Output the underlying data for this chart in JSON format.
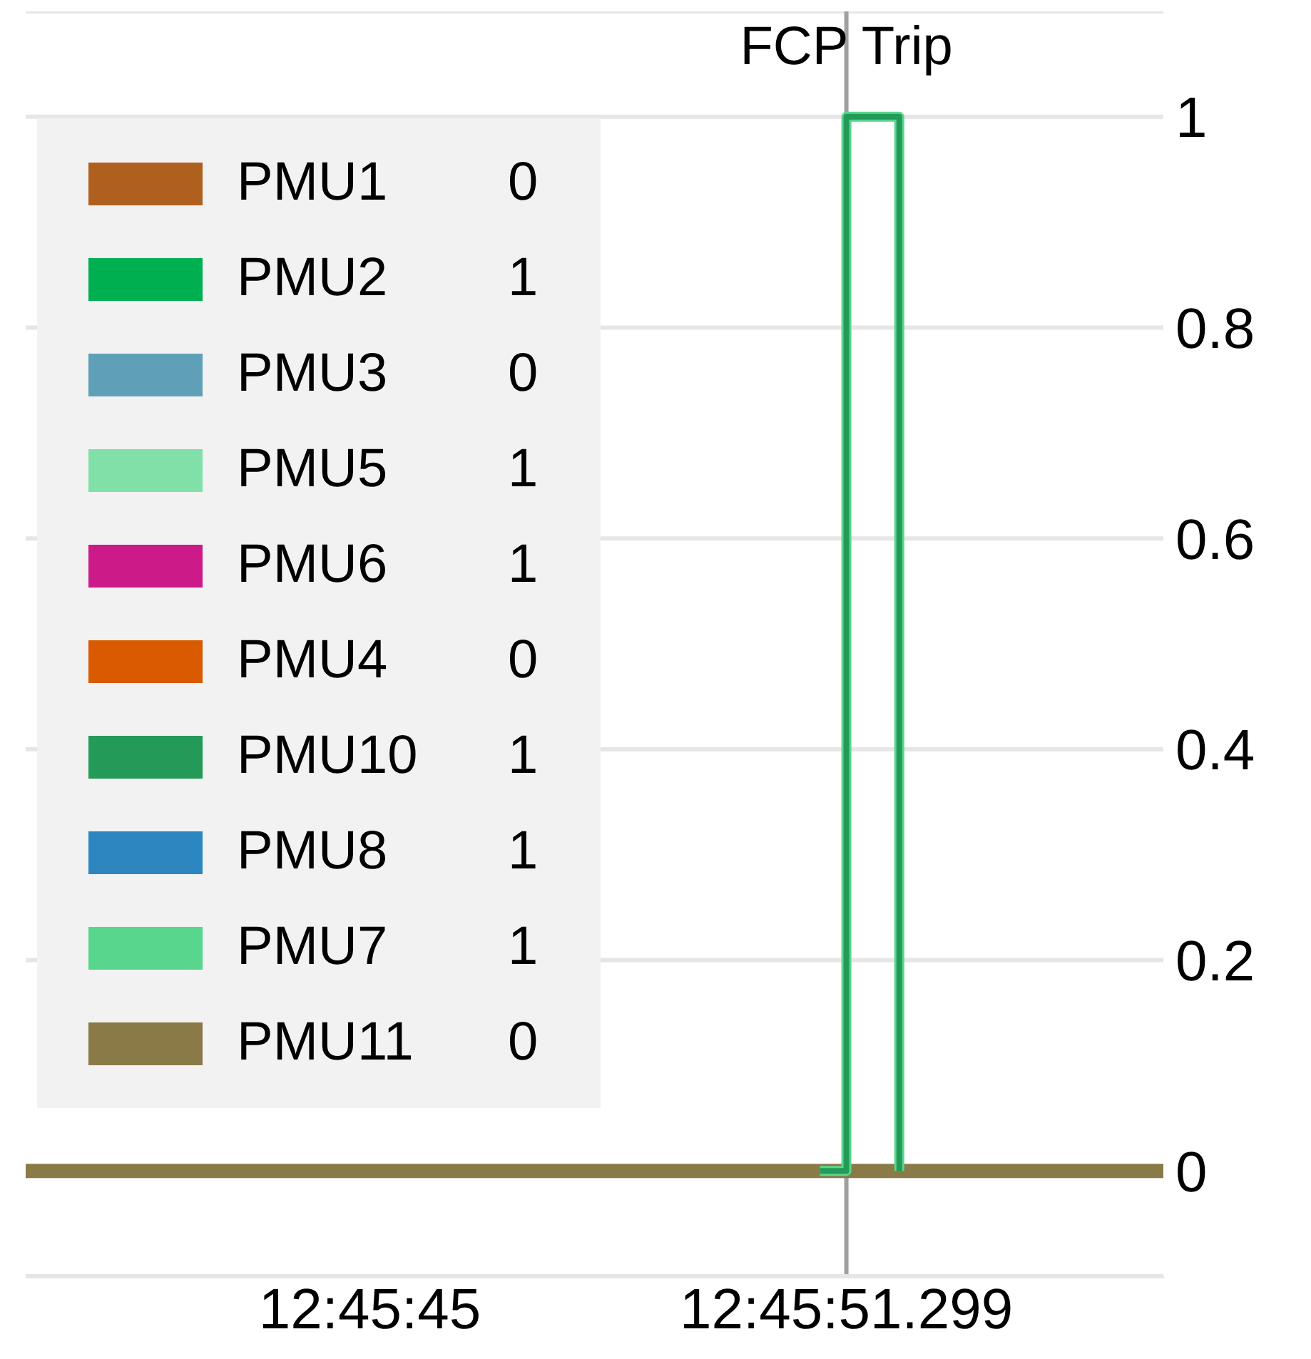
{
  "chart_data": {
    "type": "step",
    "categories": [
      null,
      null,
      null,
      null,
      null,
      null,
      null,
      null,
      null,
      null,
      null,
      null,
      null,
      "12:45:45",
      null,
      null,
      null,
      null,
      null,
      null,
      null,
      null,
      null,
      null,
      null,
      null,
      null,
      null,
      null,
      null,
      null,
      "12:45:51.299",
      null,
      null,
      null,
      null,
      null,
      null,
      null,
      null,
      null,
      null,
      null,
      null
    ],
    "ylim": [
      -0.1,
      1.1
    ],
    "yticks": [
      0,
      0.2,
      0.4,
      0.6,
      0.8,
      1
    ],
    "grid": "y",
    "legend": "top left",
    "line_style": "solid",
    "ref_lines": [
      {
        "axis": "x",
        "value": "12:45:51.299",
        "label": "FCP Trip",
        "color": "#a0a0a0"
      }
    ],
    "annotations": [
      "0",
      "1",
      "0",
      "1",
      "1",
      "0",
      "1",
      "1",
      "1",
      "0"
    ],
    "series": [
      {
        "name": "PMU1",
        "color": "#b0601e",
        "values": [
          null,
          null,
          null,
          null,
          null,
          null,
          null,
          null,
          null,
          null,
          null,
          null,
          null,
          null,
          null,
          null,
          null,
          null,
          null,
          null,
          null,
          null,
          null,
          null,
          null,
          null,
          null,
          null,
          null,
          null,
          null,
          null,
          null,
          null,
          null,
          null,
          null,
          null,
          null,
          null,
          null,
          null,
          null,
          null
        ]
      },
      {
        "name": "PMU2",
        "color": "#00b050",
        "values": [
          null,
          null,
          null,
          null,
          null,
          null,
          null,
          null,
          null,
          null,
          null,
          null,
          null,
          null,
          null,
          null,
          null,
          null,
          null,
          null,
          null,
          null,
          null,
          null,
          null,
          null,
          null,
          null,
          null,
          null,
          null,
          null,
          null,
          null,
          null,
          null,
          null,
          null,
          null,
          null,
          null,
          null,
          null,
          null
        ]
      },
      {
        "name": "PMU3",
        "color": "#5fa0b8",
        "values": [
          null,
          null,
          null,
          null,
          null,
          null,
          null,
          null,
          null,
          null,
          null,
          null,
          null,
          null,
          null,
          null,
          null,
          null,
          null,
          null,
          null,
          null,
          null,
          null,
          null,
          null,
          null,
          null,
          null,
          null,
          null,
          null,
          null,
          null,
          null,
          null,
          null,
          null,
          null,
          null,
          null,
          null,
          null,
          null
        ]
      },
      {
        "name": "PMU5",
        "color": "#80e0a8",
        "values": [
          null,
          null,
          null,
          null,
          null,
          null,
          null,
          null,
          null,
          null,
          null,
          null,
          null,
          null,
          null,
          null,
          null,
          null,
          null,
          null,
          null,
          null,
          null,
          null,
          null,
          null,
          null,
          null,
          null,
          null,
          null,
          null,
          null,
          null,
          null,
          null,
          null,
          null,
          null,
          null,
          null,
          null,
          null,
          null
        ]
      },
      {
        "name": "PMU6",
        "color": "#cc1a88",
        "values": [
          null,
          null,
          null,
          null,
          null,
          null,
          null,
          null,
          null,
          null,
          null,
          null,
          null,
          null,
          null,
          null,
          null,
          null,
          null,
          null,
          null,
          null,
          null,
          null,
          null,
          null,
          null,
          null,
          null,
          null,
          null,
          null,
          null,
          null,
          null,
          null,
          null,
          null,
          null,
          null,
          null,
          null,
          null,
          null
        ]
      },
      {
        "name": "PMU4",
        "color": "#d95a00",
        "values": [
          null,
          null,
          null,
          null,
          null,
          null,
          null,
          null,
          null,
          null,
          null,
          null,
          null,
          null,
          null,
          null,
          null,
          null,
          null,
          null,
          null,
          null,
          null,
          null,
          null,
          null,
          null,
          null,
          null,
          null,
          null,
          null,
          null,
          null,
          null,
          null,
          null,
          null,
          null,
          null,
          null,
          null,
          null,
          null
        ]
      },
      {
        "name": "PMU10",
        "color": "#239a58",
        "values": [
          null,
          null,
          null,
          null,
          null,
          null,
          null,
          null,
          null,
          null,
          null,
          null,
          null,
          null,
          null,
          null,
          null,
          null,
          null,
          null,
          null,
          null,
          null,
          null,
          null,
          null,
          null,
          null,
          null,
          null,
          0,
          1,
          1,
          0,
          null,
          null,
          null,
          null,
          null,
          null,
          null,
          null,
          null,
          null
        ]
      },
      {
        "name": "PMU8",
        "color": "#2e86c1",
        "values": [
          null,
          null,
          null,
          null,
          null,
          null,
          null,
          null,
          null,
          null,
          null,
          null,
          null,
          null,
          null,
          null,
          null,
          null,
          null,
          null,
          null,
          null,
          null,
          null,
          null,
          null,
          null,
          null,
          null,
          null,
          null,
          null,
          null,
          null,
          null,
          null,
          null,
          null,
          null,
          null,
          null,
          null,
          null,
          null
        ]
      },
      {
        "name": "PMU7",
        "color": "#58d68d",
        "values": [
          null,
          null,
          null,
          null,
          null,
          null,
          null,
          null,
          null,
          null,
          null,
          null,
          null,
          null,
          null,
          null,
          null,
          null,
          null,
          null,
          null,
          null,
          null,
          null,
          null,
          null,
          null,
          null,
          null,
          null,
          0,
          1,
          1,
          0,
          null,
          null,
          null,
          null,
          null,
          null,
          null,
          null,
          null,
          null
        ]
      },
      {
        "name": "PMU11",
        "color": "#8a7a48",
        "values": [
          0,
          0,
          0,
          0,
          0,
          0,
          0,
          0,
          0,
          0,
          0,
          0,
          0,
          0,
          0,
          0,
          0,
          0,
          0,
          0,
          0,
          0,
          0,
          0,
          0,
          0,
          0,
          0,
          0,
          0,
          0,
          0,
          0,
          0,
          0,
          0,
          0,
          0,
          0,
          0,
          0,
          0,
          0,
          0
        ]
      }
    ]
  }
}
